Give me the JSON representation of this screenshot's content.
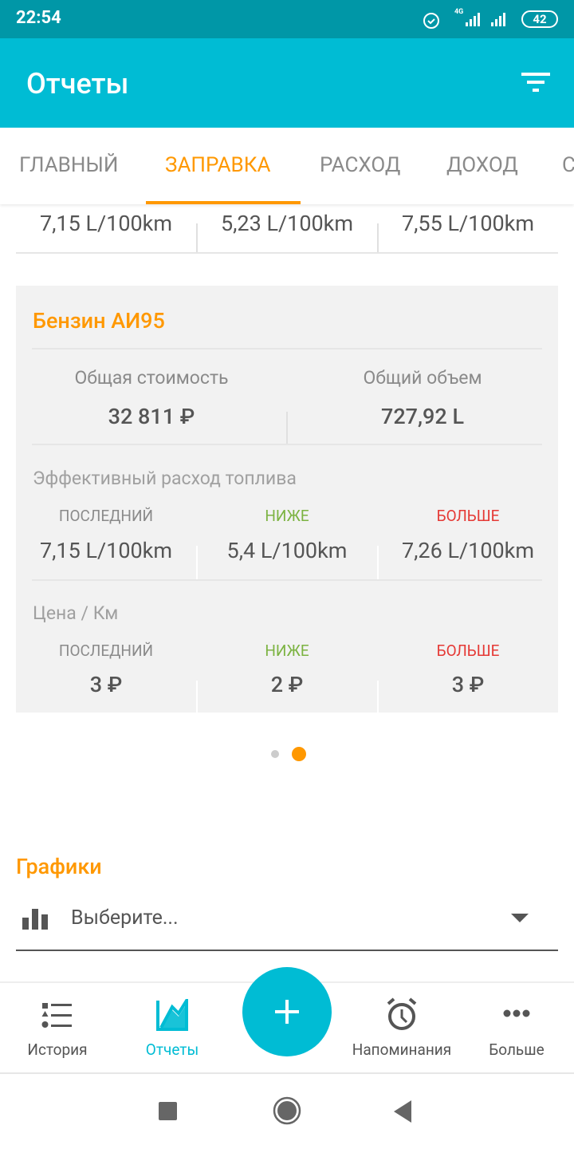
{
  "status_bar": {
    "time": "22:54",
    "network": "4G",
    "battery": "42"
  },
  "app_bar": {
    "title": "Отчеты",
    "filter_icon": "filter-icon"
  },
  "tabs": [
    {
      "label": "ГЛАВНЫЙ"
    },
    {
      "label": "ЗАПРАВКА",
      "active": true
    },
    {
      "label": "РАСХОД"
    },
    {
      "label": "ДОХОД"
    },
    {
      "label": "С"
    }
  ],
  "top_stats": [
    "7,15 L/100km",
    "5,23 L/100km",
    "7,55 L/100km"
  ],
  "card": {
    "title": "Бензин АИ95",
    "total_cost_label": "Общая стоимость",
    "total_cost": "32 811 ₽",
    "total_volume_label": "Общий объем",
    "total_volume": "727,92 L",
    "efficiency_label": "Эффективный расход топлива",
    "efficiency": [
      {
        "label": "ПОСЛЕДНИЙ",
        "value": "7,15 L/100km"
      },
      {
        "label": "НИЖЕ",
        "value": "5,4 L/100km"
      },
      {
        "label": "БОЛЬШЕ",
        "value": "7,26 L/100km"
      }
    ],
    "price_label": "Цена / Км",
    "price": [
      {
        "label": "ПОСЛЕДНИЙ",
        "value": "3 ₽"
      },
      {
        "label": "НИЖЕ",
        "value": "2 ₽"
      },
      {
        "label": "БОЛЬШЕ",
        "value": "3 ₽"
      }
    ]
  },
  "pager": {
    "pages": 2,
    "current": 2
  },
  "charts": {
    "title": "Графики",
    "select_value": "Выберите..."
  },
  "bottom_nav": [
    {
      "label": "История"
    },
    {
      "label": "Отчеты",
      "active": true
    },
    {
      "label": "Напоминания"
    },
    {
      "label": "Больше"
    }
  ],
  "colors": {
    "primary": "#00BCD4",
    "status": "#0097A7",
    "accent": "#FF9800",
    "lower": "#7CB342",
    "higher": "#E53935"
  }
}
